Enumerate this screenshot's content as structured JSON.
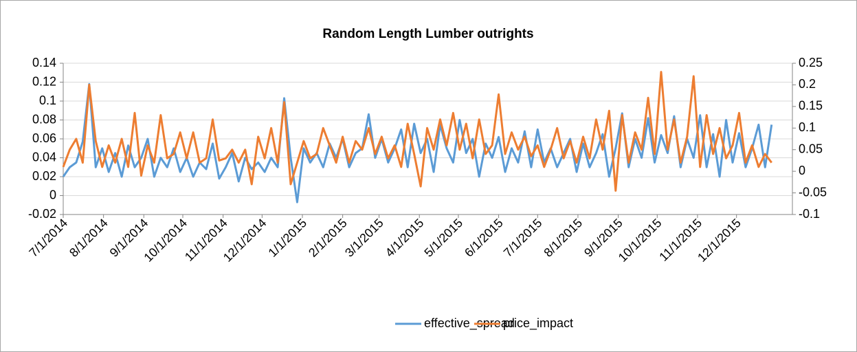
{
  "chart_data": {
    "type": "line",
    "title": "Random Length Lumber outrights",
    "x": [
      "7/1/2014",
      "7/6/2014",
      "7/11/2014",
      "7/16/2014",
      "7/21/2014",
      "7/26/2014",
      "7/31/2014",
      "8/5/2014",
      "8/10/2014",
      "8/15/2014",
      "8/20/2014",
      "8/25/2014",
      "8/30/2014",
      "9/4/2014",
      "9/9/2014",
      "9/14/2014",
      "9/19/2014",
      "9/24/2014",
      "9/29/2014",
      "10/4/2014",
      "10/9/2014",
      "10/14/2014",
      "10/19/2014",
      "10/24/2014",
      "10/29/2014",
      "11/3/2014",
      "11/8/2014",
      "11/13/2014",
      "11/18/2014",
      "11/23/2014",
      "11/28/2014",
      "12/3/2014",
      "12/8/2014",
      "12/13/2014",
      "12/18/2014",
      "12/23/2014",
      "12/28/2014",
      "1/2/2015",
      "1/7/2015",
      "1/12/2015",
      "1/17/2015",
      "1/22/2015",
      "1/27/2015",
      "2/1/2015",
      "2/6/2015",
      "2/11/2015",
      "2/16/2015",
      "2/21/2015",
      "2/26/2015",
      "3/3/2015",
      "3/8/2015",
      "3/13/2015",
      "3/18/2015",
      "3/23/2015",
      "3/28/2015",
      "4/2/2015",
      "4/7/2015",
      "4/12/2015",
      "4/17/2015",
      "4/22/2015",
      "4/27/2015",
      "5/2/2015",
      "5/7/2015",
      "5/12/2015",
      "5/17/2015",
      "5/22/2015",
      "5/27/2015",
      "6/1/2015",
      "6/6/2015",
      "6/11/2015",
      "6/16/2015",
      "6/21/2015",
      "6/26/2015",
      "7/1/2015",
      "7/6/2015",
      "7/11/2015",
      "7/16/2015",
      "7/21/2015",
      "7/26/2015",
      "7/31/2015",
      "8/5/2015",
      "8/10/2015",
      "8/15/2015",
      "8/20/2015",
      "8/25/2015",
      "8/30/2015",
      "9/4/2015",
      "9/9/2015",
      "9/14/2015",
      "9/19/2015",
      "9/24/2015",
      "9/29/2015",
      "10/4/2015",
      "10/9/2015",
      "10/14/2015",
      "10/19/2015",
      "10/24/2015",
      "10/29/2015",
      "11/3/2015",
      "11/8/2015",
      "11/13/2015",
      "11/18/2015",
      "11/23/2015",
      "11/28/2015",
      "12/3/2015",
      "12/8/2015",
      "12/13/2015",
      "12/18/2015",
      "12/23/2015",
      "12/28/2015"
    ],
    "xlim": [
      "7/1/2014",
      "1/13/2016"
    ],
    "xticks": [
      "7/1/2014",
      "8/1/2014",
      "9/1/2014",
      "10/1/2014",
      "11/1/2014",
      "12/1/2014",
      "1/1/2015",
      "2/1/2015",
      "3/1/2015",
      "4/1/2015",
      "5/1/2015",
      "6/1/2015",
      "7/1/2015",
      "8/1/2015",
      "9/1/2015",
      "10/1/2015",
      "11/1/2015",
      "12/1/2015"
    ],
    "ylim": [
      -0.02,
      0.14
    ],
    "yticks": [
      -0.02,
      0,
      0.02,
      0.04,
      0.06,
      0.08,
      0.1,
      0.12,
      0.14
    ],
    "y2lim": [
      -0.1,
      0.25
    ],
    "y2ticks": [
      -0.1,
      -0.05,
      0,
      0.05,
      0.1,
      0.15,
      0.2,
      0.25
    ],
    "grid": true,
    "legend": "bottom",
    "series": [
      {
        "name": "effective_spread",
        "color": "#5b9bd5",
        "values": [
          0.02,
          0.03,
          0.035,
          0.057,
          0.118,
          0.03,
          0.05,
          0.025,
          0.045,
          0.02,
          0.053,
          0.03,
          0.04,
          0.06,
          0.02,
          0.04,
          0.03,
          0.05,
          0.025,
          0.04,
          0.02,
          0.035,
          0.028,
          0.055,
          0.018,
          0.03,
          0.045,
          0.015,
          0.04,
          0.028,
          0.035,
          0.025,
          0.04,
          0.03,
          0.103,
          0.04,
          -0.007,
          0.05,
          0.035,
          0.045,
          0.03,
          0.055,
          0.04,
          0.06,
          0.03,
          0.045,
          0.05,
          0.086,
          0.04,
          0.06,
          0.035,
          0.05,
          0.07,
          0.03,
          0.076,
          0.045,
          0.06,
          0.025,
          0.075,
          0.05,
          0.035,
          0.08,
          0.045,
          0.06,
          0.02,
          0.055,
          0.04,
          0.062,
          0.025,
          0.05,
          0.035,
          0.068,
          0.03,
          0.07,
          0.035,
          0.05,
          0.03,
          0.045,
          0.06,
          0.025,
          0.055,
          0.03,
          0.045,
          0.065,
          0.02,
          0.05,
          0.087,
          0.03,
          0.06,
          0.04,
          0.082,
          0.035,
          0.064,
          0.045,
          0.084,
          0.03,
          0.06,
          0.04,
          0.085,
          0.03,
          0.065,
          0.02,
          0.08,
          0.035,
          0.066,
          0.03,
          0.05,
          0.075,
          0.03,
          0.075
        ]
      },
      {
        "name": "price_impact",
        "color": "#ed7d31",
        "axis": "y2",
        "values": [
          0.01,
          0.05,
          0.075,
          0.02,
          0.2,
          0.07,
          0.01,
          0.06,
          0.02,
          0.075,
          0.01,
          0.135,
          -0.01,
          0.06,
          0.02,
          0.13,
          0.03,
          0.04,
          0.09,
          0.03,
          0.09,
          0.02,
          0.03,
          0.12,
          0.025,
          0.03,
          0.05,
          0.02,
          0.05,
          -0.03,
          0.08,
          0.03,
          0.1,
          0.02,
          0.16,
          -0.03,
          0.02,
          0.07,
          0.03,
          0.04,
          0.1,
          0.06,
          0.02,
          0.08,
          0.02,
          0.07,
          0.05,
          0.1,
          0.04,
          0.08,
          0.03,
          0.06,
          0.01,
          0.11,
          0.04,
          -0.035,
          0.1,
          0.05,
          0.12,
          0.06,
          0.135,
          0.05,
          0.11,
          0.03,
          0.12,
          0.04,
          0.06,
          0.178,
          0.04,
          0.09,
          0.05,
          0.08,
          0.035,
          0.06,
          0.01,
          0.05,
          0.1,
          0.03,
          0.07,
          0.02,
          0.08,
          0.03,
          0.12,
          0.05,
          0.14,
          -0.045,
          0.13,
          0.02,
          0.09,
          0.05,
          0.17,
          0.04,
          0.23,
          0.05,
          0.12,
          0.02,
          0.08,
          0.22,
          0.01,
          0.13,
          0.04,
          0.1,
          0.03,
          0.06,
          0.135,
          0.02,
          0.06,
          0.01,
          0.04,
          0.02
        ]
      }
    ]
  }
}
